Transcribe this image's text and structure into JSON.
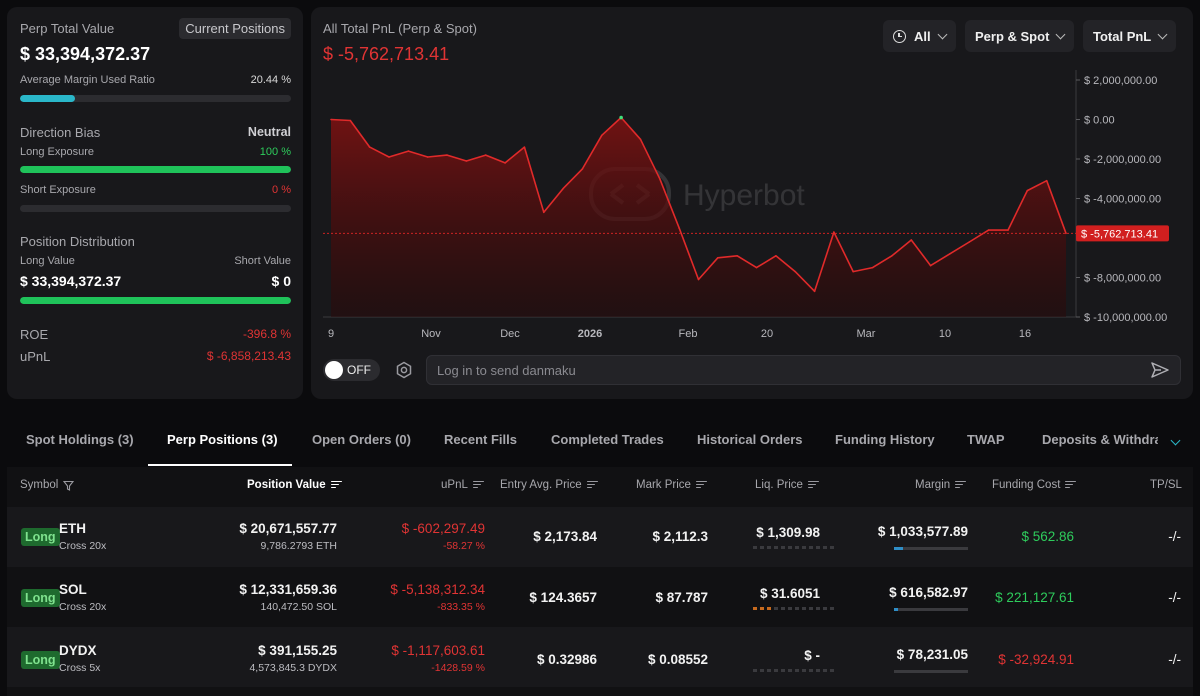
{
  "left": {
    "perp_total_label": "Perp Total Value",
    "current_positions_btn": "Current Positions",
    "perp_total_value": "$ 33,394,372.37",
    "avg_margin_label": "Average Margin Used Ratio",
    "avg_margin_value": "20.44 %",
    "avg_margin_fraction": 0.2044,
    "direction_bias_label": "Direction Bias",
    "direction_bias_value": "Neutral",
    "long_exposure_label": "Long Exposure",
    "long_exposure_value": "100 %",
    "short_exposure_label": "Short Exposure",
    "short_exposure_value": "0 %",
    "position_distribution_label": "Position Distribution",
    "long_value_label": "Long Value",
    "short_value_label": "Short Value",
    "long_value": "$ 33,394,372.37",
    "short_value": "$ 0",
    "roe_label": "ROE",
    "roe_value": "-396.8 %",
    "upnl_label": "uPnL",
    "upnl_value": "$ -6,858,213.43"
  },
  "chart_header": {
    "title": "All Total PnL (Perp & Spot)",
    "value": "$ -5,762,713.41",
    "dropdowns": [
      "All",
      "Perp & Spot",
      "Total PnL"
    ]
  },
  "chart_data": {
    "type": "area",
    "ylim": [
      -10000000,
      2000000
    ],
    "y_ticks": [
      "$ 2,000,000.00",
      "$ 0.00",
      "$ -2,000,000.00",
      "$ -4,000,000.00",
      "$ -6,000,000.00",
      "$ -8,000,000.00",
      "$ -10,000,000.00"
    ],
    "x_ticks": [
      "9",
      "Nov",
      "Dec",
      "2026",
      "Feb",
      "20",
      "Mar",
      "10",
      "16"
    ],
    "series": [
      {
        "values": [
          0,
          -50000,
          -1400000,
          -1900000,
          -1600000,
          -1900000,
          -1800000,
          -2100000,
          -1800000,
          -2200000,
          -1400000,
          -4700000,
          -3500000,
          -2500000,
          -800000,
          100000,
          -1000000,
          -3000000,
          -5500000,
          -8100000,
          -7000000,
          -6900000,
          -7500000,
          -6900000,
          -7700000,
          -8700000,
          -5700000,
          -7700000,
          -7500000,
          -6900000,
          -6100000,
          -7400000,
          -6800000,
          -6200000,
          -5600000,
          -5600000,
          -3600000,
          -3100000,
          -5762713.41
        ]
      }
    ],
    "current_label": "$ -5,762,713.41",
    "watermark": "Hyperbot"
  },
  "chat": {
    "toggle_label": "OFF",
    "placeholder": "Log in to send danmaku"
  },
  "tabs": [
    "Spot Holdings (3)",
    "Perp Positions (3)",
    "Open Orders (0)",
    "Recent Fills",
    "Completed Trades",
    "Historical Orders",
    "Funding History",
    "TWAP",
    "Deposits & Withdraw"
  ],
  "table": {
    "headers": [
      "Symbol",
      "Position Value",
      "uPnL",
      "Entry Avg. Price",
      "Mark Price",
      "Liq. Price",
      "Margin",
      "Funding Cost",
      "TP/SL"
    ],
    "rows": [
      {
        "side": "Long",
        "symbol": "ETH",
        "leverage": "Cross 20x",
        "position_value": "$ 20,671,557.77",
        "size": "9,786.2793 ETH",
        "upnl": "$ -602,297.49",
        "upnl_pct": "-58.27 %",
        "entry": "$ 2,173.84",
        "mark": "$ 2,112.3",
        "liq": "$ 1,309.98",
        "liq_risk": 0,
        "margin": "$ 1,033,577.89",
        "margin_fraction": 0.12,
        "funding": "$ 562.86",
        "funding_positive": true,
        "tpsl": "-/-"
      },
      {
        "side": "Long",
        "symbol": "SOL",
        "leverage": "Cross 20x",
        "position_value": "$ 12,331,659.36",
        "size": "140,472.50 SOL",
        "upnl": "$ -5,138,312.34",
        "upnl_pct": "-833.35 %",
        "entry": "$ 124.3657",
        "mark": "$ 87.787",
        "liq": "$ 31.6051",
        "liq_risk": 3,
        "margin": "$ 616,582.97",
        "margin_fraction": 0.06,
        "funding": "$ 221,127.61",
        "funding_positive": true,
        "tpsl": "-/-"
      },
      {
        "side": "Long",
        "symbol": "DYDX",
        "leverage": "Cross 5x",
        "position_value": "$ 391,155.25",
        "size": "4,573,845.3 DYDX",
        "upnl": "$ -1,117,603.61",
        "upnl_pct": "-1428.59 %",
        "entry": "$ 0.32986",
        "mark": "$ 0.08552",
        "liq": "$ -",
        "liq_risk": 0,
        "margin": "$ 78,231.05",
        "margin_fraction": 0.0,
        "funding": "$ -32,924.91",
        "funding_positive": false,
        "tpsl": "-/-"
      }
    ]
  }
}
